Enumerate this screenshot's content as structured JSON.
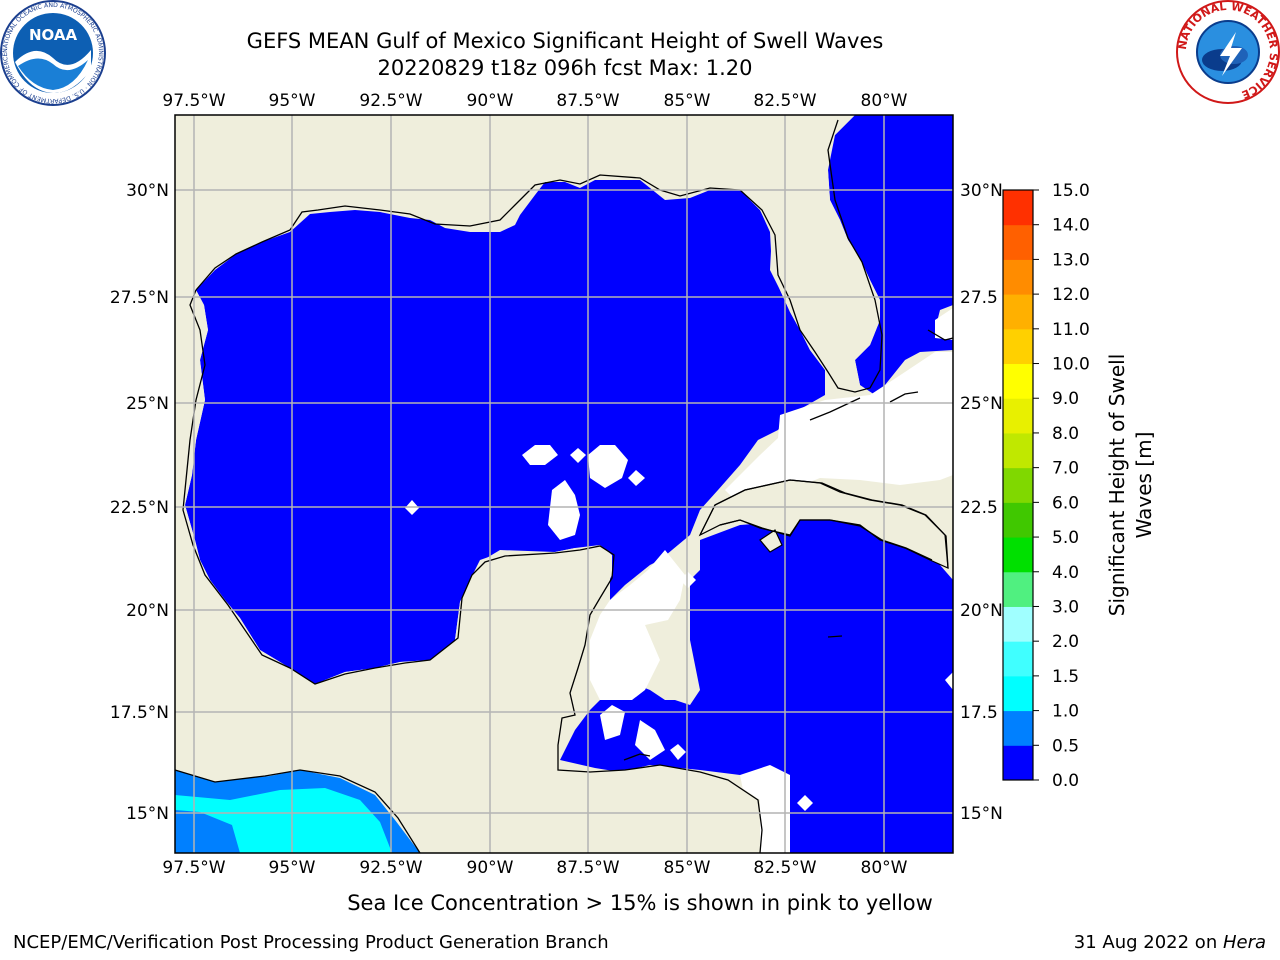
{
  "title": {
    "line1": "GEFS MEAN Gulf of Mexico Significant Height of Swell Waves",
    "line2": "20220829 t18z 096h fcst   Max: 1.20"
  },
  "map": {
    "lon_ticks": [
      "97.5°W",
      "95°W",
      "92.5°W",
      "90°W",
      "87.5°W",
      "85°W",
      "82.5°W",
      "80°W"
    ],
    "lat_ticks_left": [
      "30°N",
      "27.5°N",
      "25°N",
      "22.5°N",
      "20°N",
      "17.5°N",
      "15°N"
    ],
    "lat_ticks_right": [
      "30°N",
      "27.5",
      "25°N",
      "22.5",
      "20°N",
      "17.5",
      "15°N"
    ],
    "colors": {
      "land": "#efeedc",
      "water": "#0000ff",
      "grid": "#b4b4b4"
    }
  },
  "colorbar": {
    "label_line1": "Significant Height of Swell",
    "label_line2": "Waves [m]",
    "ticks": [
      "0.0",
      "0.5",
      "1.0",
      "1.5",
      "2.0",
      "3.0",
      "4.0",
      "5.0",
      "6.0",
      "7.0",
      "8.0",
      "9.0",
      "10.0",
      "11.0",
      "12.0",
      "13.0",
      "14.0",
      "15.0"
    ],
    "colors": [
      "#0000ff",
      "#0080ff",
      "#00ffff",
      "#40ffff",
      "#a0ffff",
      "#50f080",
      "#00e000",
      "#40c800",
      "#80d800",
      "#c0e800",
      "#e8f000",
      "#ffff00",
      "#ffd000",
      "#ffb000",
      "#ff8c00",
      "#ff6000",
      "#ff3000",
      "#ff0000"
    ]
  },
  "subtitle": "Sea Ice Concentration > 15% is shown in pink to yellow",
  "footer": {
    "left": "NCEP/EMC/Verification Post Processing Product Generation Branch",
    "right_prefix": "31 Aug 2022 on ",
    "right_host": "Hera"
  },
  "logos": {
    "noaa_text": "NOAA",
    "noaa_ring": "NATIONAL OCEANIC AND ATMOSPHERIC ADMINISTRATION · U.S. DEPARTMENT OF COMMERCE",
    "nws_ring": "NATIONAL WEATHER SERVICE"
  }
}
